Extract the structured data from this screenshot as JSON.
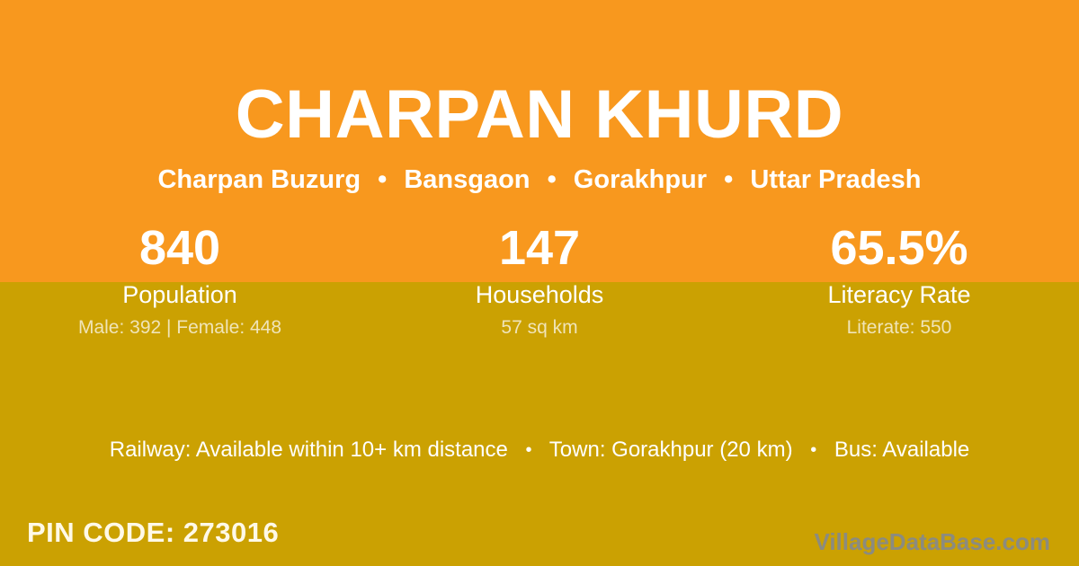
{
  "header": {
    "title": "CHARPAN KHURD",
    "breadcrumb": {
      "separator": "•",
      "parts": [
        "Charpan Buzurg",
        "Bansgaon",
        "Gorakhpur",
        "Uttar Pradesh"
      ]
    }
  },
  "stats": [
    {
      "value": "840",
      "label": "Population",
      "detail": "Male: 392 | Female: 448"
    },
    {
      "value": "147",
      "label": "Households",
      "detail": "57 sq km"
    },
    {
      "value": "65.5%",
      "label": "Literacy Rate",
      "detail": "Literate: 550"
    }
  ],
  "amenities": {
    "separator": "•",
    "items": [
      "Railway: Available within 10+ km distance",
      "Town: Gorakhpur (20 km)",
      "Bus: Available"
    ]
  },
  "footer": {
    "pin_code": "PIN CODE: 273016",
    "watermark": "VillageDataBase.com"
  },
  "colors": {
    "top_background": "#F8981E",
    "bottom_background": "#CBA102",
    "primary_text": "#FFFFFF",
    "muted_text": "#F0E4B8",
    "pin_text": "#FFF9E8",
    "watermark_text": "#8B8B80"
  }
}
